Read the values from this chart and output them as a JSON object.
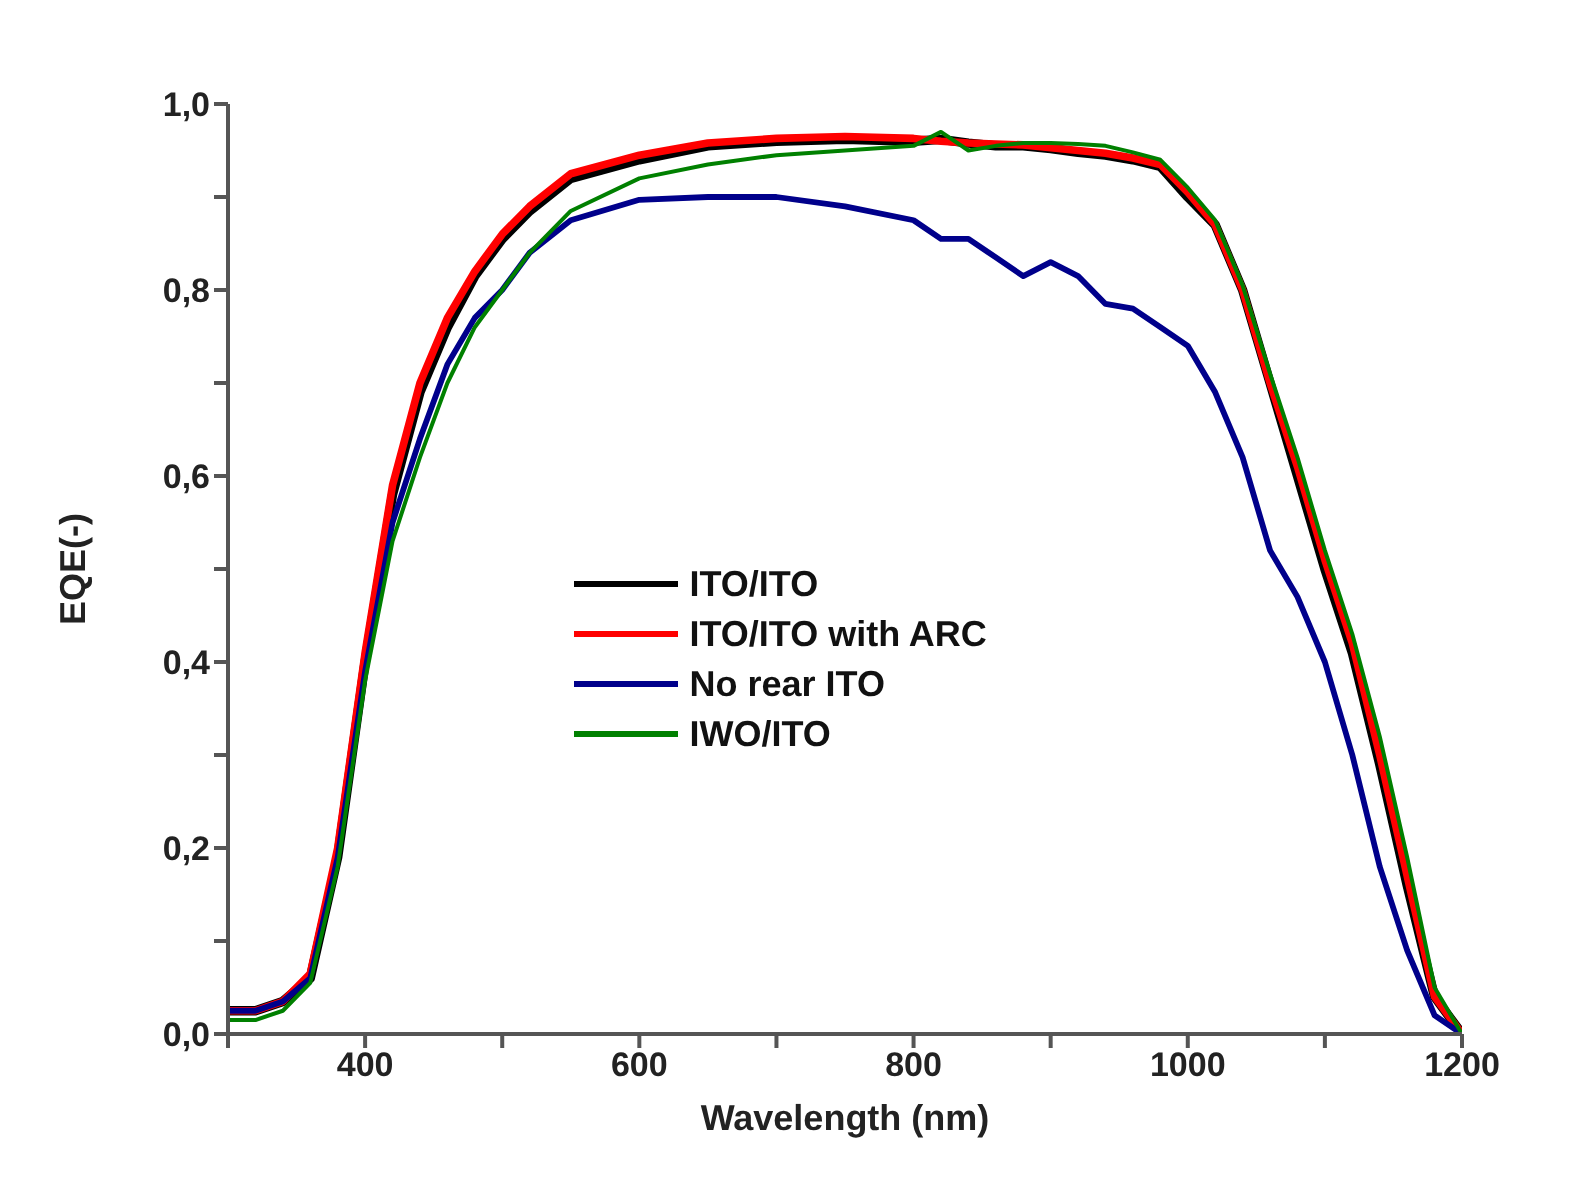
{
  "chart_data": {
    "type": "line",
    "xlabel": "Wavelength (nm)",
    "ylabel": "EQE(-)",
    "x": [
      300,
      320,
      340,
      360,
      380,
      400,
      420,
      440,
      460,
      480,
      500,
      520,
      550,
      600,
      650,
      700,
      750,
      800,
      820,
      840,
      860,
      880,
      900,
      920,
      940,
      960,
      980,
      1000,
      1020,
      1040,
      1060,
      1080,
      1100,
      1120,
      1140,
      1160,
      1180,
      1200
    ],
    "series": [
      {
        "name": "ITO/ITO",
        "color": "#000000",
        "values": [
          0.025,
          0.025,
          0.035,
          0.06,
          0.19,
          0.4,
          0.58,
          0.69,
          0.76,
          0.815,
          0.855,
          0.885,
          0.92,
          0.94,
          0.955,
          0.96,
          0.962,
          0.96,
          0.962,
          0.958,
          0.955,
          0.955,
          0.952,
          0.948,
          0.945,
          0.94,
          0.933,
          0.9,
          0.87,
          0.8,
          0.7,
          0.6,
          0.5,
          0.41,
          0.29,
          0.16,
          0.04,
          0.0
        ]
      },
      {
        "name": "ITO/ITO with ARC",
        "color": "#ff0000",
        "values": [
          0.025,
          0.025,
          0.035,
          0.065,
          0.2,
          0.41,
          0.59,
          0.7,
          0.77,
          0.82,
          0.86,
          0.89,
          0.925,
          0.945,
          0.958,
          0.963,
          0.965,
          0.963,
          0.96,
          0.958,
          0.957,
          0.956,
          0.953,
          0.95,
          0.947,
          0.942,
          0.935,
          0.905,
          0.87,
          0.8,
          0.7,
          0.61,
          0.51,
          0.42,
          0.3,
          0.17,
          0.04,
          0.0
        ]
      },
      {
        "name": "No rear ITO",
        "color": "#00008b",
        "values": [
          0.025,
          0.025,
          0.035,
          0.06,
          0.19,
          0.39,
          0.55,
          0.64,
          0.72,
          0.77,
          0.8,
          0.84,
          0.875,
          0.897,
          0.9,
          0.9,
          0.89,
          0.875,
          0.855,
          0.855,
          0.835,
          0.815,
          0.83,
          0.815,
          0.785,
          0.78,
          0.76,
          0.74,
          0.69,
          0.62,
          0.52,
          0.47,
          0.4,
          0.3,
          0.18,
          0.09,
          0.02,
          0.0
        ]
      },
      {
        "name": "IWO/ITO",
        "color": "#008000",
        "values": [
          0.015,
          0.015,
          0.025,
          0.055,
          0.18,
          0.38,
          0.53,
          0.62,
          0.7,
          0.76,
          0.8,
          0.84,
          0.885,
          0.92,
          0.935,
          0.945,
          0.95,
          0.955,
          0.97,
          0.95,
          0.955,
          0.958,
          0.958,
          0.957,
          0.955,
          0.948,
          0.94,
          0.91,
          0.875,
          0.805,
          0.71,
          0.62,
          0.52,
          0.43,
          0.32,
          0.19,
          0.05,
          0.0
        ]
      }
    ],
    "xlim": [
      300,
      1200
    ],
    "xticks": [
      {
        "value": 300,
        "label": null
      },
      400,
      {
        "value": 500,
        "label": null
      },
      600,
      {
        "value": 700,
        "label": null
      },
      800,
      {
        "value": 900,
        "label": null
      },
      1000,
      {
        "value": 1100,
        "label": null
      },
      1200
    ],
    "ylim": [
      0,
      1
    ],
    "yticks": [
      {
        "value": 0,
        "label": "0,0"
      },
      {
        "value": 0.1,
        "label": null
      },
      {
        "value": 0.2,
        "label": "0,2"
      },
      {
        "value": 0.3,
        "label": null
      },
      {
        "value": 0.4,
        "label": "0,4"
      },
      {
        "value": 0.5,
        "label": null
      },
      {
        "value": 0.6,
        "label": "0,6"
      },
      {
        "value": 0.7,
        "label": null
      },
      {
        "value": 0.8,
        "label": "0,8"
      },
      {
        "value": 0.9,
        "label": null
      },
      {
        "value": 1,
        "label": "1,0"
      }
    ],
    "legend": "center",
    "grid": false,
    "marker": "none",
    "line_style": "solid"
  }
}
